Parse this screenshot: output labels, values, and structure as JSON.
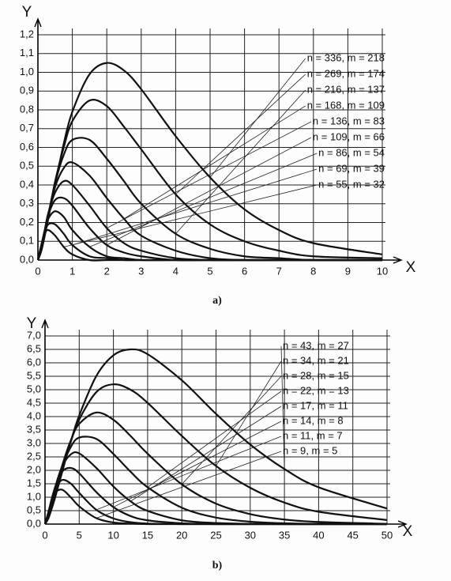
{
  "chart_data": [
    {
      "type": "line",
      "caption": "a)",
      "xlabel": "X",
      "ylabel": "Y",
      "grid": true,
      "legend": "upper right",
      "x": [
        0,
        0.1,
        0.2,
        0.3,
        0.5,
        0.75,
        1,
        1.5,
        2,
        2.5,
        3,
        4,
        5,
        6,
        7,
        8,
        10
      ],
      "xlim": [
        0,
        10
      ],
      "ylim": [
        0,
        1.2
      ],
      "xticks": [
        0,
        1,
        2,
        3,
        4,
        5,
        6,
        7,
        8,
        9,
        10
      ],
      "yticks": [
        {
          "value": 0,
          "label": "0,0"
        },
        {
          "value": 0.1,
          "label": "0,1"
        },
        {
          "value": 0.2,
          "label": "0,2"
        },
        {
          "value": 0.3,
          "label": "0,3"
        },
        {
          "value": 0.4,
          "label": "0,4"
        },
        {
          "value": 0.5,
          "label": "0,5"
        },
        {
          "value": 0.6,
          "label": "0,6"
        },
        {
          "value": 0.7,
          "label": "0,7"
        },
        {
          "value": 0.8,
          "label": "0,8"
        },
        {
          "value": 0.9,
          "label": "0,9"
        },
        {
          "value": 1.0,
          "label": "1,0"
        },
        {
          "value": 1.1,
          "label": "1,1"
        },
        {
          "value": 1.2,
          "label": "1,2"
        }
      ],
      "series": [
        {
          "name": "n = 336, m = 218",
          "color": "#111111",
          "values": [
            0,
            0.05,
            0.13,
            0.22,
            0.4,
            0.62,
            0.79,
            0.99,
            1.05,
            1.01,
            0.91,
            0.66,
            0.44,
            0.27,
            0.16,
            0.09,
            0.03
          ]
        },
        {
          "name": "n = 269, m = 174",
          "color": "#111111",
          "values": [
            0,
            0.05,
            0.14,
            0.23,
            0.42,
            0.6,
            0.74,
            0.85,
            0.82,
            0.71,
            0.59,
            0.35,
            0.19,
            0.1,
            0.05,
            0.02,
            0.01
          ]
        },
        {
          "name": "n = 216, m = 137",
          "color": "#111111",
          "values": [
            0,
            0.06,
            0.15,
            0.24,
            0.41,
            0.56,
            0.64,
            0.64,
            0.54,
            0.42,
            0.3,
            0.14,
            0.06,
            0.02,
            0.01,
            0,
            0
          ]
        },
        {
          "name": "n = 168, m = 109",
          "color": "#111111",
          "values": [
            0,
            0.06,
            0.15,
            0.24,
            0.39,
            0.49,
            0.52,
            0.45,
            0.33,
            0.22,
            0.13,
            0.05,
            0.01,
            0,
            0,
            0,
            0
          ]
        },
        {
          "name": "n = 136, m = 83",
          "color": "#111111",
          "values": [
            0,
            0.07,
            0.16,
            0.25,
            0.36,
            0.42,
            0.4,
            0.29,
            0.17,
            0.09,
            0.05,
            0.01,
            0,
            0,
            0,
            0,
            0
          ]
        },
        {
          "name": "n = 109, m = 66",
          "color": "#111111",
          "values": [
            0,
            0.07,
            0.16,
            0.24,
            0.32,
            0.33,
            0.29,
            0.17,
            0.08,
            0.04,
            0.02,
            0,
            0,
            0,
            0,
            0,
            0
          ]
        },
        {
          "name": "n = 86, m = 54",
          "color": "#111111",
          "values": [
            0,
            0.08,
            0.16,
            0.22,
            0.26,
            0.23,
            0.16,
            0.07,
            0.02,
            0.01,
            0,
            0,
            0,
            0,
            0,
            0,
            0
          ]
        },
        {
          "name": "n = 69, m = 39",
          "color": "#111111",
          "values": [
            0,
            0.08,
            0.15,
            0.19,
            0.19,
            0.14,
            0.08,
            0.02,
            0.01,
            0,
            0,
            0,
            0,
            0,
            0,
            0,
            0
          ]
        },
        {
          "name": "n = 55, m = 32",
          "color": "#111111",
          "values": [
            0,
            0.08,
            0.14,
            0.16,
            0.13,
            0.07,
            0.03,
            0,
            0,
            0,
            0,
            0,
            0,
            0,
            0,
            0,
            0
          ]
        }
      ]
    },
    {
      "type": "line",
      "caption": "b)",
      "xlabel": "X",
      "ylabel": "Y",
      "grid": true,
      "legend": "upper right",
      "x": [
        0,
        0.5,
        1,
        1.5,
        2.5,
        3.75,
        5,
        7.5,
        10,
        12.5,
        15,
        20,
        25,
        30,
        35,
        40,
        50
      ],
      "xlim": [
        0,
        50
      ],
      "ylim": [
        0,
        7
      ],
      "xticks": [
        0,
        5,
        10,
        15,
        20,
        25,
        30,
        35,
        40,
        45,
        50
      ],
      "yticks": [
        {
          "value": 0,
          "label": "0,0"
        },
        {
          "value": 0.5,
          "label": "0,5"
        },
        {
          "value": 1,
          "label": "1,0"
        },
        {
          "value": 1.5,
          "label": "1,5"
        },
        {
          "value": 2,
          "label": "2,0"
        },
        {
          "value": 2.5,
          "label": "2,5"
        },
        {
          "value": 3,
          "label": "3,0"
        },
        {
          "value": 3.5,
          "label": "3,5"
        },
        {
          "value": 4,
          "label": "4,0"
        },
        {
          "value": 4.5,
          "label": "4,5"
        },
        {
          "value": 5,
          "label": "5,0"
        },
        {
          "value": 5.5,
          "label": "5,5"
        },
        {
          "value": 6,
          "label": "6,0"
        },
        {
          "value": 6.5,
          "label": "6,5"
        },
        {
          "value": 7,
          "label": "7,0"
        }
      ],
      "series": [
        {
          "name": "n = 43, m = 27",
          "color": "#111111",
          "values": [
            0,
            0.22,
            0.59,
            1.01,
            1.93,
            3.06,
            4.04,
            5.51,
            6.28,
            6.5,
            6.32,
            5.35,
            4.1,
            2.96,
            2.05,
            1.37,
            0.58
          ]
        },
        {
          "name": "n = 34, m = 21",
          "color": "#111111",
          "values": [
            0,
            0.24,
            0.63,
            1.08,
            2.0,
            3.05,
            3.89,
            4.91,
            5.2,
            5.0,
            4.51,
            3.28,
            2.16,
            1.35,
            0.8,
            0.46,
            0.15
          ]
        },
        {
          "name": "n = 28, m = 15",
          "color": "#111111",
          "values": [
            0,
            0.29,
            0.74,
            1.23,
            2.17,
            3.1,
            3.73,
            4.15,
            3.88,
            3.28,
            2.62,
            1.48,
            0.76,
            0.37,
            0.17,
            0.08,
            0.01
          ]
        },
        {
          "name": "n = 22, m = 13",
          "color": "#111111",
          "values": [
            0,
            0.31,
            0.78,
            1.27,
            2.13,
            2.86,
            3.22,
            3.17,
            2.61,
            1.95,
            1.37,
            0.61,
            0.24,
            0.09,
            0.03,
            0.01,
            0
          ]
        },
        {
          "name": "n = 17, m = 11",
          "color": "#111111",
          "values": [
            0,
            0.37,
            0.89,
            1.39,
            2.14,
            2.59,
            2.63,
            2.09,
            1.4,
            0.85,
            0.49,
            0.14,
            0.04,
            0.01,
            0,
            0,
            0
          ]
        },
        {
          "name": "n = 14, m = 8",
          "color": "#111111",
          "values": [
            0,
            0.41,
            0.94,
            1.39,
            1.95,
            2.09,
            1.89,
            1.19,
            0.63,
            0.3,
            0.14,
            0.03,
            0,
            0,
            0,
            0,
            0
          ]
        },
        {
          "name": "n = 11, m = 7",
          "color": "#111111",
          "values": [
            0,
            0.45,
            0.96,
            1.33,
            1.64,
            1.51,
            1.16,
            0.53,
            0.21,
            0.07,
            0.02,
            0,
            0,
            0,
            0,
            0,
            0
          ]
        },
        {
          "name": "n = 9, m = 5",
          "color": "#111111",
          "values": [
            0,
            0.45,
            0.9,
            1.18,
            1.28,
            1.0,
            0.66,
            0.22,
            0.06,
            0.02,
            0,
            0,
            0,
            0,
            0,
            0,
            0
          ]
        }
      ]
    }
  ]
}
